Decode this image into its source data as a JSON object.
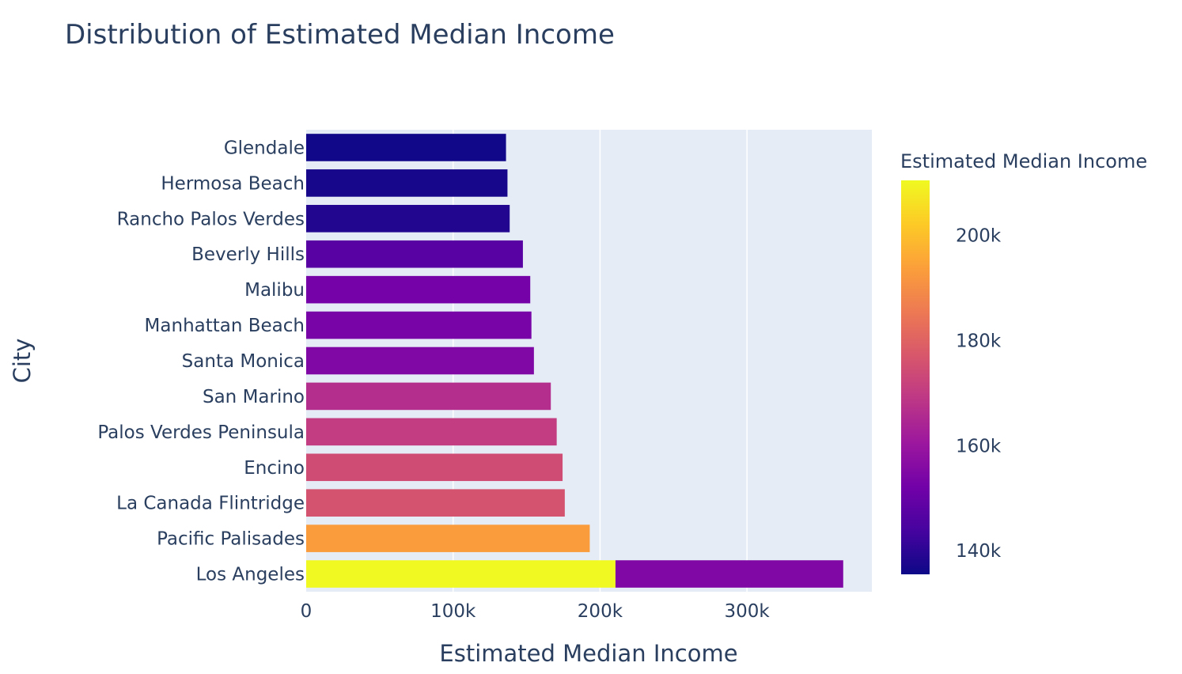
{
  "chart_data": {
    "type": "bar",
    "orientation": "horizontal",
    "title": "Distribution of Estimated Median Income",
    "xlabel": "Estimated Median Income",
    "ylabel": "City",
    "xlim": [
      0,
      385000
    ],
    "xticks": [
      {
        "value": 0,
        "label": "0"
      },
      {
        "value": 100000,
        "label": "100k"
      },
      {
        "value": 200000,
        "label": "200k"
      },
      {
        "value": 300000,
        "label": "300k"
      }
    ],
    "grid": true,
    "categories": [
      "Glendale",
      "Hermosa Beach",
      "Rancho Palos Verdes",
      "Beverly Hills",
      "Malibu",
      "Manhattan Beach",
      "Santa Monica",
      "San Marino",
      "Palos Verdes Peninsula",
      "Encino",
      "La Canada Flintridge",
      "Pacific Palisades",
      "Los Angeles"
    ],
    "bars": [
      {
        "category": "Glendale",
        "segments": [
          136000
        ]
      },
      {
        "category": "Hermosa Beach",
        "segments": [
          137000
        ]
      },
      {
        "category": "Rancho Palos Verdes",
        "segments": [
          138500
        ]
      },
      {
        "category": "Beverly Hills",
        "segments": [
          147500
        ]
      },
      {
        "category": "Malibu",
        "segments": [
          152500
        ]
      },
      {
        "category": "Manhattan Beach",
        "segments": [
          153300
        ]
      },
      {
        "category": "Santa Monica",
        "segments": [
          155000
        ]
      },
      {
        "category": "San Marino",
        "segments": [
          166500
        ]
      },
      {
        "category": "Palos Verdes Peninsula",
        "segments": [
          170500
        ]
      },
      {
        "category": "Encino",
        "segments": [
          174500
        ]
      },
      {
        "category": "La Canada Flintridge",
        "segments": [
          176000
        ]
      },
      {
        "category": "Pacific Palisades",
        "segments": [
          193000
        ]
      },
      {
        "category": "Los Angeles",
        "segments": [
          210500,
          155000
        ]
      }
    ],
    "colorbar": {
      "title": "Estimated Median Income",
      "range": [
        135500,
        210500
      ],
      "ticks": [
        {
          "value": 140000,
          "label": "140k"
        },
        {
          "value": 160000,
          "label": "160k"
        },
        {
          "value": 180000,
          "label": "180k"
        },
        {
          "value": 200000,
          "label": "200k"
        }
      ],
      "colorscale": "Plasma",
      "colors": [
        "#0d0887",
        "#46039f",
        "#7201a8",
        "#9c179e",
        "#bd3786",
        "#d8576b",
        "#ed7953",
        "#fb9f3a",
        "#fdca26",
        "#f0f921"
      ]
    },
    "colors": {
      "plot_background": "#e5ecf6",
      "gridline": "#ffffff",
      "text": "#2a3f5f"
    }
  }
}
